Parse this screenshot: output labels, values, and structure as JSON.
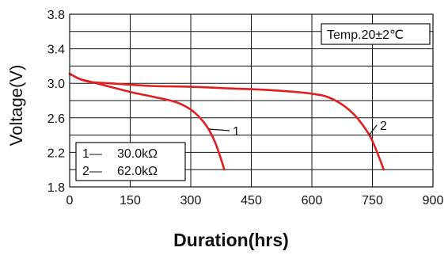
{
  "chart_data": {
    "type": "line",
    "xlabel": "Duration(hrs)",
    "ylabel": "Voltage(V)",
    "xlim": [
      0,
      900
    ],
    "ylim": [
      1.8,
      3.8
    ],
    "xticks": [
      0,
      150,
      300,
      450,
      600,
      750,
      900
    ],
    "yticks": [
      1.8,
      2.2,
      2.6,
      3.0,
      3.4,
      3.8
    ],
    "xtick_labels": [
      "0",
      "150",
      "300",
      "450",
      "600",
      "750",
      "900"
    ],
    "ytick_labels": [
      "1.8",
      "2.2",
      "2.6",
      "3.0",
      "3.4",
      "3.8"
    ],
    "grid": true,
    "line_color": "#e02020",
    "annotation_box": "Temp.20±2℃",
    "legend_box": [
      {
        "label": "1—",
        "value": "30.0kΩ"
      },
      {
        "label": "2—",
        "value": "62.0kΩ"
      }
    ],
    "series": [
      {
        "name": "1",
        "x": [
          0,
          25,
          50,
          100,
          150,
          200,
          250,
          280,
          310,
          340,
          360,
          375,
          383
        ],
        "y": [
          3.11,
          3.05,
          3.02,
          2.96,
          2.9,
          2.85,
          2.8,
          2.75,
          2.66,
          2.5,
          2.32,
          2.12,
          2.0
        ]
      },
      {
        "name": "2",
        "x": [
          0,
          30,
          60,
          100,
          200,
          300,
          400,
          500,
          600,
          650,
          700,
          740,
          760,
          778
        ],
        "y": [
          3.11,
          3.04,
          3.01,
          3.0,
          2.97,
          2.96,
          2.94,
          2.92,
          2.88,
          2.82,
          2.66,
          2.42,
          2.22,
          2.0
        ]
      }
    ]
  }
}
